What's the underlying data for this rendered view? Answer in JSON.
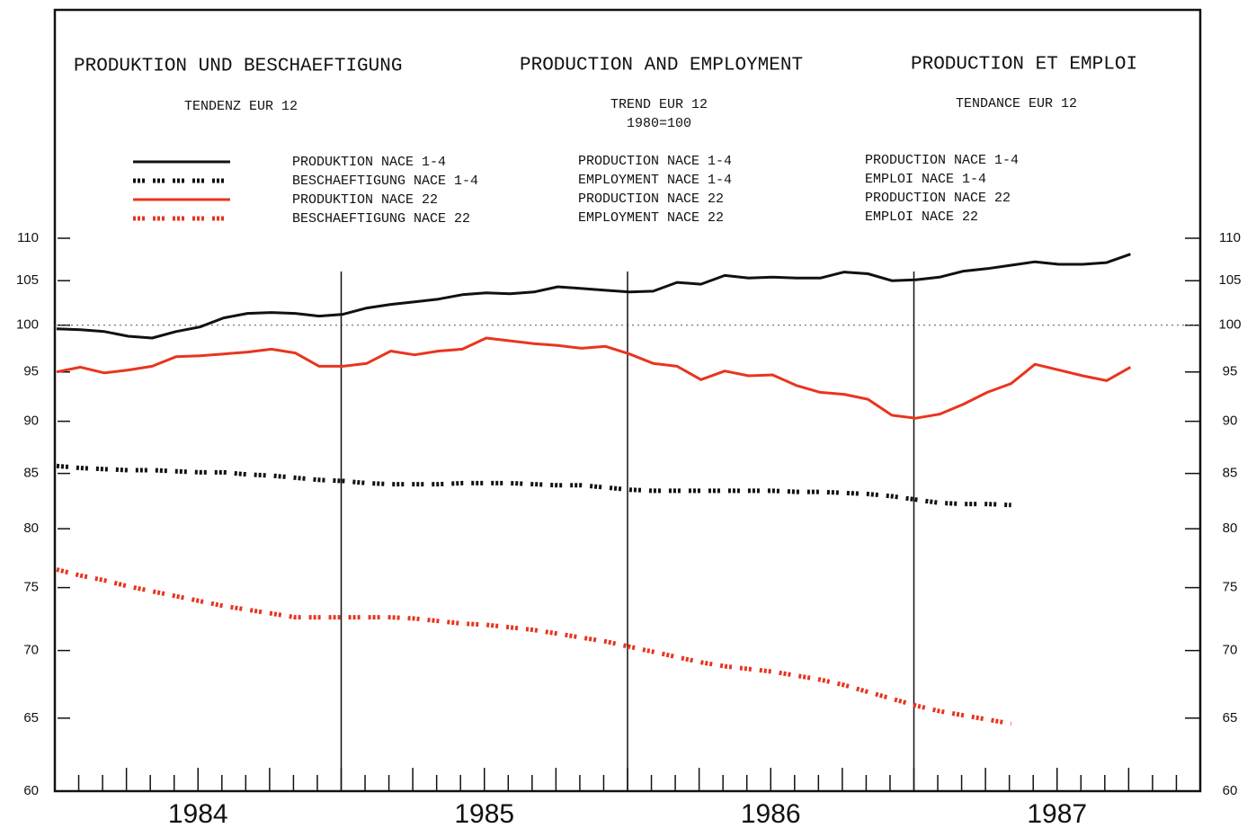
{
  "chart_data": {
    "type": "line",
    "titles": [
      "PRODUKTION UND BESCHAEFTIGUNG",
      "PRODUCTION AND EMPLOYMENT",
      "PRODUCTION ET EMPLOI"
    ],
    "subtitles": [
      "TENDENZ EUR 12",
      "TREND EUR 12",
      "TENDANCE EUR 12"
    ],
    "base_note": "1980=100",
    "years": [
      "1984",
      "1985",
      "1986",
      "1987"
    ],
    "log_scale": true,
    "ylim": [
      60,
      110
    ],
    "yticks": [
      60,
      65,
      70,
      75,
      80,
      85,
      90,
      95,
      100,
      105,
      110
    ],
    "y2lim": [
      60,
      110
    ],
    "y2ticks": [
      60,
      65,
      70,
      75,
      80,
      85,
      90,
      95,
      100,
      105,
      110
    ],
    "reference_line": 100,
    "series": [
      {
        "name": "PRODUKTION NACE 1-4",
        "name_en": "PRODUCTION NACE 1-4",
        "name_fr": "PRODUCTION NACE 1-4",
        "color": "#111111",
        "style": "solid",
        "values": [
          99.6,
          99.5,
          99.3,
          98.8,
          98.6,
          99.3,
          99.8,
          100.8,
          101.3,
          101.4,
          101.3,
          101.0,
          101.2,
          101.9,
          102.3,
          102.6,
          102.9,
          103.4,
          103.6,
          103.5,
          103.7,
          104.3,
          104.1,
          103.9,
          103.7,
          103.8,
          104.8,
          104.6,
          105.6,
          105.3,
          105.4,
          105.3,
          105.3,
          106.0,
          105.8,
          105.0,
          105.1,
          105.4,
          106.1,
          106.4,
          106.8,
          107.2,
          106.9,
          106.9,
          107.1,
          108.1
        ]
      },
      {
        "name": "BESCHAEFTIGUNG NACE 1-4",
        "name_en": "EMPLOYMENT NACE 1-4",
        "name_fr": "EMPLOI NACE 1-4",
        "color": "#111111",
        "style": "dotted",
        "values": [
          85.7,
          85.5,
          85.4,
          85.3,
          85.3,
          85.2,
          85.1,
          85.1,
          84.9,
          84.8,
          84.6,
          84.4,
          84.3,
          84.1,
          84.0,
          84.0,
          84.0,
          84.1,
          84.1,
          84.1,
          84.0,
          83.9,
          83.9,
          83.7,
          83.5,
          83.4,
          83.4,
          83.4,
          83.4,
          83.4,
          83.4,
          83.3,
          83.3,
          83.2,
          83.1,
          82.9,
          82.6,
          82.3,
          82.2,
          82.2,
          82.1,
          null,
          null,
          null,
          null,
          null
        ]
      },
      {
        "name": "PRODUKTION NACE 22",
        "name_en": "PRODUCTION NACE 22",
        "name_fr": "PRODUCTION NACE 22",
        "color": "#e8351e",
        "style": "solid",
        "values": [
          95.0,
          95.5,
          94.9,
          95.2,
          95.6,
          96.6,
          96.7,
          96.9,
          97.1,
          97.4,
          97.0,
          95.6,
          95.6,
          95.9,
          97.2,
          96.8,
          97.2,
          97.4,
          98.6,
          98.3,
          98.0,
          97.8,
          97.5,
          97.7,
          96.9,
          95.9,
          95.6,
          94.2,
          95.1,
          94.6,
          94.7,
          93.6,
          92.9,
          92.7,
          92.2,
          90.6,
          90.3,
          90.7,
          91.7,
          92.9,
          93.8,
          95.8,
          95.2,
          94.6,
          94.1,
          95.5
        ]
      },
      {
        "name": "BESCHAEFTIGUNG NACE 22",
        "name_en": "EMPLOYMENT NACE 22",
        "name_fr": "EMPLOI NACE 22",
        "color": "#e8351e",
        "style": "dotted",
        "values": [
          76.5,
          76.0,
          75.6,
          75.1,
          74.7,
          74.3,
          73.9,
          73.5,
          73.2,
          72.9,
          72.6,
          72.6,
          72.6,
          72.6,
          72.6,
          72.5,
          72.3,
          72.1,
          72.0,
          71.8,
          71.6,
          71.3,
          71.0,
          70.7,
          70.3,
          69.9,
          69.5,
          69.1,
          68.8,
          68.6,
          68.4,
          68.1,
          67.8,
          67.4,
          66.9,
          66.4,
          65.9,
          65.5,
          65.2,
          64.9,
          64.6,
          null,
          null,
          null,
          null,
          null
        ]
      }
    ]
  }
}
